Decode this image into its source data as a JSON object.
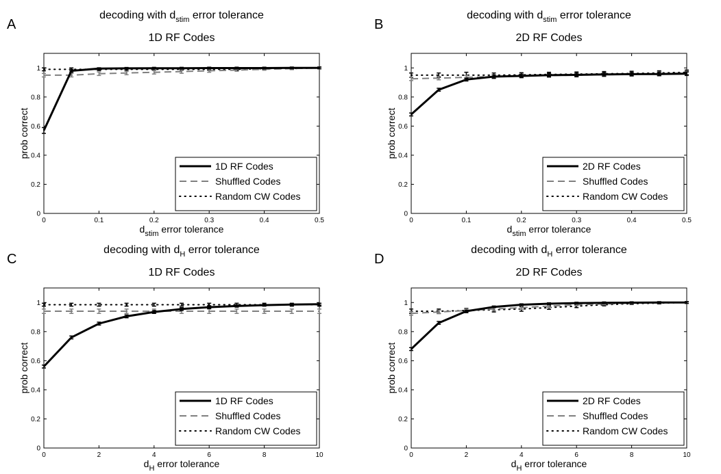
{
  "colors": {
    "rf": "#000000",
    "shuffled": "#7f7f7f",
    "random": "#000000"
  },
  "chart_data": [
    {
      "type": "line",
      "panel": "A",
      "title": {
        "pre": "decoding with d",
        "sub": "stim",
        "post": " error tolerance",
        "line2": "1D RF Codes"
      },
      "xlabel": {
        "pre": "d",
        "sub": "stim",
        "post": " error tolerance"
      },
      "ylabel": "prob correct",
      "xlim": [
        0,
        0.5
      ],
      "ylim": [
        0,
        1.1
      ],
      "xticks": [
        0,
        0.1,
        0.2,
        0.3,
        0.4,
        0.5
      ],
      "xtick_labels": [
        "0",
        "0.1",
        "0.2",
        "0.3",
        "0.4",
        "0.5"
      ],
      "yticks": [
        0,
        0.2,
        0.4,
        0.6,
        0.8,
        1
      ],
      "ytick_labels": [
        "0",
        "0.2",
        "0.4",
        "0.6",
        "0.8",
        "1"
      ],
      "x": [
        0,
        0.05,
        0.1,
        0.15,
        0.2,
        0.25,
        0.3,
        0.35,
        0.4,
        0.45,
        0.5
      ],
      "series": [
        {
          "name": "1D RF Codes",
          "style": "solid",
          "values": [
            0.57,
            0.98,
            0.995,
            0.997,
            0.998,
            0.998,
            0.999,
            0.999,
            0.999,
            1.0,
            1.0
          ],
          "err": [
            0.02,
            0.01,
            0.005,
            0.004,
            0.003,
            0.003,
            0.002,
            0.002,
            0.002,
            0.001,
            0.001
          ]
        },
        {
          "name": "Shuffled Codes",
          "style": "dashed",
          "values": [
            0.95,
            0.95,
            0.96,
            0.965,
            0.97,
            0.975,
            0.98,
            0.985,
            0.99,
            0.995,
            1.0
          ],
          "err": [
            0.012,
            0.012,
            0.012,
            0.012,
            0.012,
            0.012,
            0.01,
            0.008,
            0.006,
            0.004,
            0.002
          ]
        },
        {
          "name": "Random CW Codes",
          "style": "dotted",
          "values": [
            0.99,
            0.99,
            0.99,
            0.99,
            0.99,
            0.99,
            0.99,
            0.99,
            0.995,
            0.995,
            1.0
          ],
          "err": [
            0.01,
            0.01,
            0.008,
            0.008,
            0.008,
            0.006,
            0.006,
            0.005,
            0.004,
            0.003,
            0.002
          ]
        }
      ],
      "legend": "lower-right"
    },
    {
      "type": "line",
      "panel": "B",
      "title": {
        "pre": "decoding with d",
        "sub": "stim",
        "post": " error tolerance",
        "line2": "2D RF Codes"
      },
      "xlabel": {
        "pre": "d",
        "sub": "stim",
        "post": " error tolerance"
      },
      "ylabel": "prob correct",
      "xlim": [
        0,
        0.5
      ],
      "ylim": [
        0,
        1.1
      ],
      "xticks": [
        0,
        0.1,
        0.2,
        0.3,
        0.4,
        0.5
      ],
      "xtick_labels": [
        "0",
        "0.1",
        "0.2",
        "0.3",
        "0.4",
        "0.5"
      ],
      "yticks": [
        0,
        0.2,
        0.4,
        0.6,
        0.8,
        1
      ],
      "ytick_labels": [
        "0",
        "0.2",
        "0.4",
        "0.6",
        "0.8",
        "1"
      ],
      "x": [
        0,
        0.05,
        0.1,
        0.15,
        0.2,
        0.25,
        0.3,
        0.35,
        0.4,
        0.45,
        0.5
      ],
      "series": [
        {
          "name": "2D RF Codes",
          "style": "solid",
          "values": [
            0.68,
            0.85,
            0.92,
            0.94,
            0.945,
            0.95,
            0.952,
            0.955,
            0.957,
            0.958,
            0.96
          ],
          "err": [
            0.01,
            0.01,
            0.01,
            0.012,
            0.012,
            0.012,
            0.012,
            0.012,
            0.012,
            0.012,
            0.012
          ]
        },
        {
          "name": "Shuffled Codes",
          "style": "dashed",
          "values": [
            0.925,
            0.93,
            0.935,
            0.94,
            0.945,
            0.948,
            0.95,
            0.953,
            0.956,
            0.96,
            0.965
          ],
          "err": [
            0.012,
            0.012,
            0.012,
            0.012,
            0.012,
            0.012,
            0.012,
            0.012,
            0.012,
            0.012,
            0.012
          ]
        },
        {
          "name": "Random CW Codes",
          "style": "dotted",
          "values": [
            0.95,
            0.95,
            0.95,
            0.95,
            0.952,
            0.955,
            0.957,
            0.96,
            0.962,
            0.965,
            0.97
          ],
          "err": [
            0.015,
            0.015,
            0.02,
            0.015,
            0.015,
            0.015,
            0.015,
            0.015,
            0.015,
            0.015,
            0.015
          ]
        }
      ],
      "legend": "lower-right"
    },
    {
      "type": "line",
      "panel": "C",
      "title": {
        "pre": "decoding with d",
        "sub": "H",
        "post": " error tolerance",
        "line2": "1D RF Codes"
      },
      "xlabel": {
        "pre": "d",
        "sub": "H",
        "post": " error tolerance"
      },
      "ylabel": "prob correct",
      "xlim": [
        0,
        10
      ],
      "ylim": [
        0,
        1.1
      ],
      "xticks": [
        0,
        2,
        4,
        6,
        8,
        10
      ],
      "xtick_labels": [
        "0",
        "2",
        "4",
        "6",
        "8",
        "10"
      ],
      "yticks": [
        0,
        0.2,
        0.4,
        0.6,
        0.8,
        1
      ],
      "ytick_labels": [
        "0",
        "0.2",
        "0.4",
        "0.6",
        "0.8",
        "1"
      ],
      "x": [
        0,
        1,
        2,
        3,
        4,
        5,
        6,
        7,
        8,
        9,
        10
      ],
      "series": [
        {
          "name": "1D RF Codes",
          "style": "solid",
          "values": [
            0.56,
            0.76,
            0.855,
            0.905,
            0.935,
            0.955,
            0.968,
            0.976,
            0.982,
            0.986,
            0.988
          ],
          "err": [
            0.01,
            0.01,
            0.01,
            0.01,
            0.01,
            0.01,
            0.01,
            0.008,
            0.006,
            0.005,
            0.005
          ]
        },
        {
          "name": "Shuffled Codes",
          "style": "dashed",
          "values": [
            0.94,
            0.94,
            0.94,
            0.94,
            0.94,
            0.94,
            0.94,
            0.94,
            0.94,
            0.94,
            0.94
          ],
          "err": [
            0.015,
            0.015,
            0.015,
            0.015,
            0.015,
            0.015,
            0.015,
            0.015,
            0.015,
            0.015,
            0.015
          ]
        },
        {
          "name": "Random CW Codes",
          "style": "dotted",
          "values": [
            0.985,
            0.985,
            0.985,
            0.985,
            0.985,
            0.985,
            0.985,
            0.985,
            0.985,
            0.985,
            0.985
          ],
          "err": [
            0.01,
            0.01,
            0.01,
            0.01,
            0.01,
            0.01,
            0.01,
            0.01,
            0.01,
            0.01,
            0.01
          ]
        }
      ],
      "legend": "lower-right"
    },
    {
      "type": "line",
      "panel": "D",
      "title": {
        "pre": "decoding with d",
        "sub": "H",
        "post": " error tolerance",
        "line2": "2D RF Codes"
      },
      "xlabel": {
        "pre": "d",
        "sub": "H",
        "post": " error tolerance"
      },
      "ylabel": "prob correct",
      "xlim": [
        0,
        10
      ],
      "ylim": [
        0,
        1.1
      ],
      "xticks": [
        0,
        2,
        4,
        6,
        8,
        10
      ],
      "xtick_labels": [
        "0",
        "2",
        "4",
        "6",
        "8",
        "10"
      ],
      "yticks": [
        0,
        0.2,
        0.4,
        0.6,
        0.8,
        1
      ],
      "ytick_labels": [
        "0",
        "0.2",
        "0.4",
        "0.6",
        "0.8",
        "1"
      ],
      "x": [
        0,
        1,
        2,
        3,
        4,
        5,
        6,
        7,
        8,
        9,
        10
      ],
      "series": [
        {
          "name": "2D RF Codes",
          "style": "solid",
          "values": [
            0.68,
            0.86,
            0.94,
            0.97,
            0.985,
            0.992,
            0.996,
            0.998,
            0.999,
            1.0,
            1.0
          ],
          "err": [
            0.01,
            0.01,
            0.008,
            0.006,
            0.005,
            0.004,
            0.003,
            0.002,
            0.002,
            0.001,
            0.001
          ]
        },
        {
          "name": "Shuffled Codes",
          "style": "dashed",
          "values": [
            0.925,
            0.935,
            0.945,
            0.955,
            0.965,
            0.975,
            0.985,
            0.99,
            0.995,
            0.998,
            1.0
          ],
          "err": [
            0.012,
            0.012,
            0.012,
            0.012,
            0.012,
            0.01,
            0.008,
            0.006,
            0.004,
            0.003,
            0.002
          ]
        },
        {
          "name": "Random CW Codes",
          "style": "dotted",
          "values": [
            0.94,
            0.94,
            0.945,
            0.95,
            0.955,
            0.965,
            0.975,
            0.985,
            0.992,
            0.996,
            1.0
          ],
          "err": [
            0.015,
            0.015,
            0.015,
            0.015,
            0.015,
            0.012,
            0.01,
            0.008,
            0.006,
            0.004,
            0.002
          ]
        }
      ],
      "legend": "lower-right"
    }
  ]
}
